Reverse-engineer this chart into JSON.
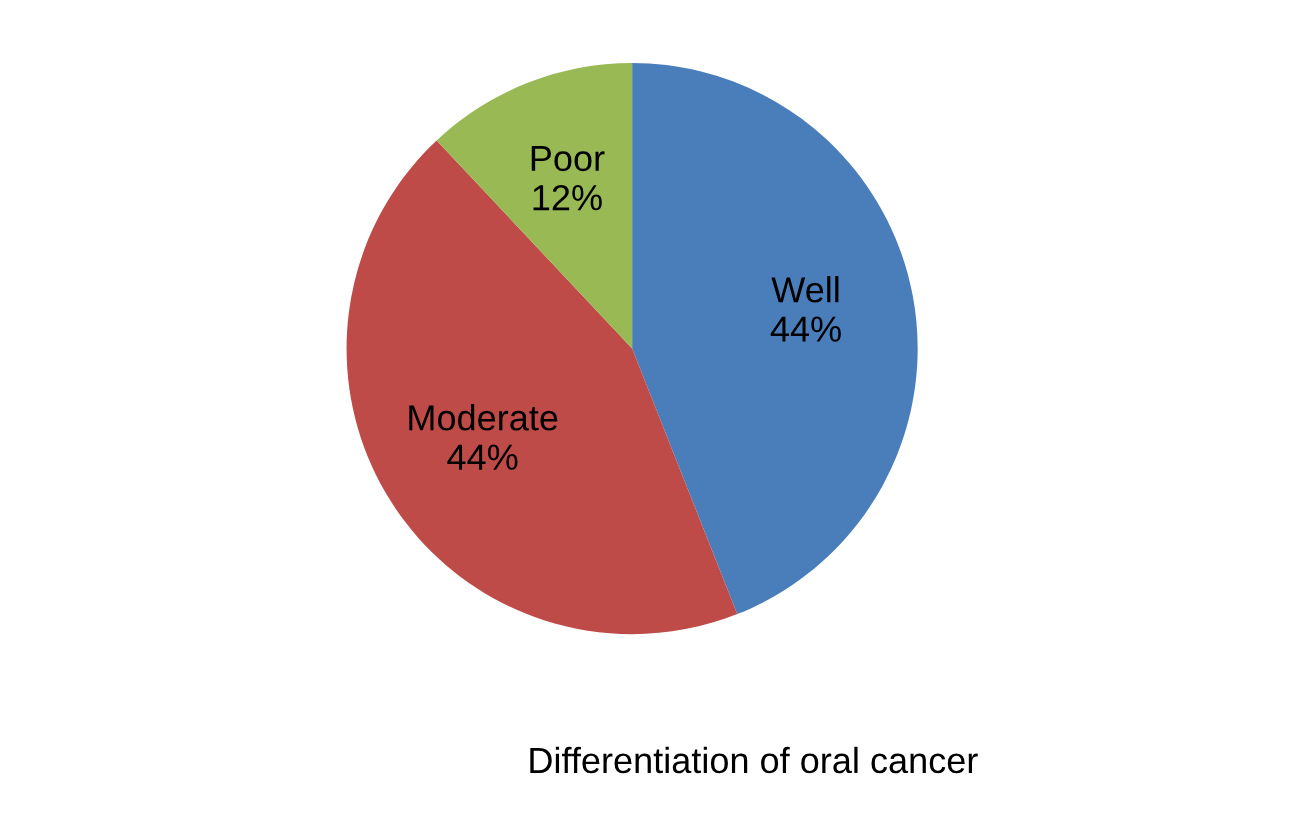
{
  "chart_data": {
    "type": "pie",
    "title": "Differentiation of oral cancer",
    "categories": [
      "Well",
      "Moderate",
      "Poor"
    ],
    "values": [
      44,
      44,
      12
    ],
    "data_labels": true,
    "value_labels": [
      "44%",
      "44%",
      "12%"
    ],
    "colors": [
      "#4a7ebb",
      "#be4b48",
      "#98b954"
    ]
  }
}
